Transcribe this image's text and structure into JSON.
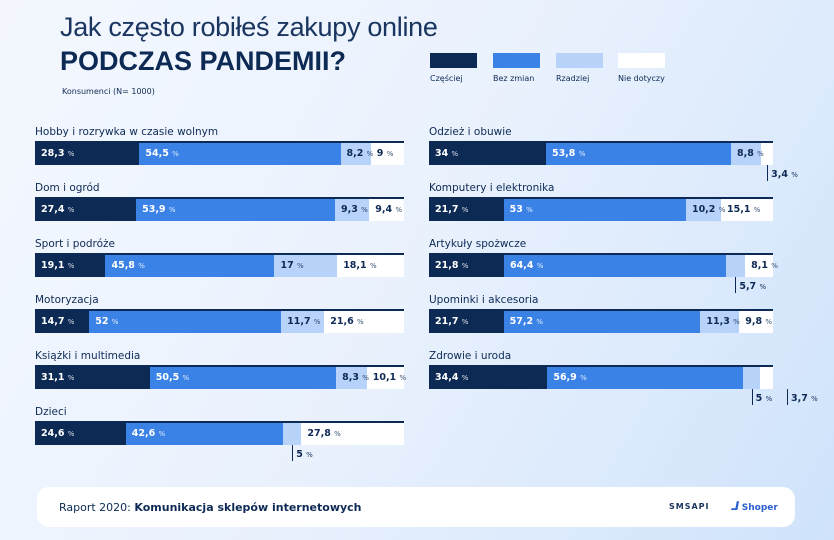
{
  "header": {
    "title_line1": "Jak często robiłeś zakupy online",
    "title_line2": "PODCZAS PANDEMII?",
    "subtitle": "Konsumenci (N= 1000)"
  },
  "chart_data": {
    "type": "bar",
    "orientation": "horizontal",
    "stacked": true,
    "unit": "%",
    "legend": [
      "Częściej",
      "Bez zmian",
      "Rzadziej",
      "Nie dotyczy"
    ],
    "legend_placement": "top-right",
    "colors": [
      "#0d2a55",
      "#3b82e6",
      "#b7d3fa",
      "#ffffff"
    ],
    "left": [
      {
        "category": "Hobby i rozrywka w czasie wolnym",
        "values": [
          28.3,
          54.5,
          8.2,
          9
        ]
      },
      {
        "category": "Dom i ogród",
        "values": [
          27.4,
          53.9,
          9.3,
          9.4
        ]
      },
      {
        "category": "Sport i podróże",
        "values": [
          19.1,
          45.8,
          17,
          18.1
        ]
      },
      {
        "category": "Motoryzacja",
        "values": [
          14.7,
          52,
          11.7,
          21.6
        ]
      },
      {
        "category": "Książki i multimedia",
        "values": [
          31.1,
          50.5,
          8.3,
          10.1
        ]
      },
      {
        "category": "Dzieci",
        "values": [
          24.6,
          42.6,
          5,
          27.8
        ]
      }
    ],
    "right": [
      {
        "category": "Odzież i obuwie",
        "values": [
          34,
          53.8,
          8.8,
          3.4
        ]
      },
      {
        "category": "Komputery i elektronika",
        "values": [
          21.7,
          53,
          10.2,
          15.1
        ]
      },
      {
        "category": "Artykuły spożwcze",
        "values": [
          21.8,
          64.4,
          5.7,
          8.1
        ]
      },
      {
        "category": "Upominki i akcesoria",
        "values": [
          21.7,
          57.2,
          11.3,
          9.8
        ]
      },
      {
        "category": "Zdrowie i uroda",
        "values": [
          34.4,
          56.9,
          5,
          3.7
        ]
      }
    ]
  },
  "footer": {
    "prefix": "Raport 2020:",
    "title": "Komunikacja sklepów internetowych",
    "logo1": "SMSAPI",
    "logo2": "Shoper"
  }
}
